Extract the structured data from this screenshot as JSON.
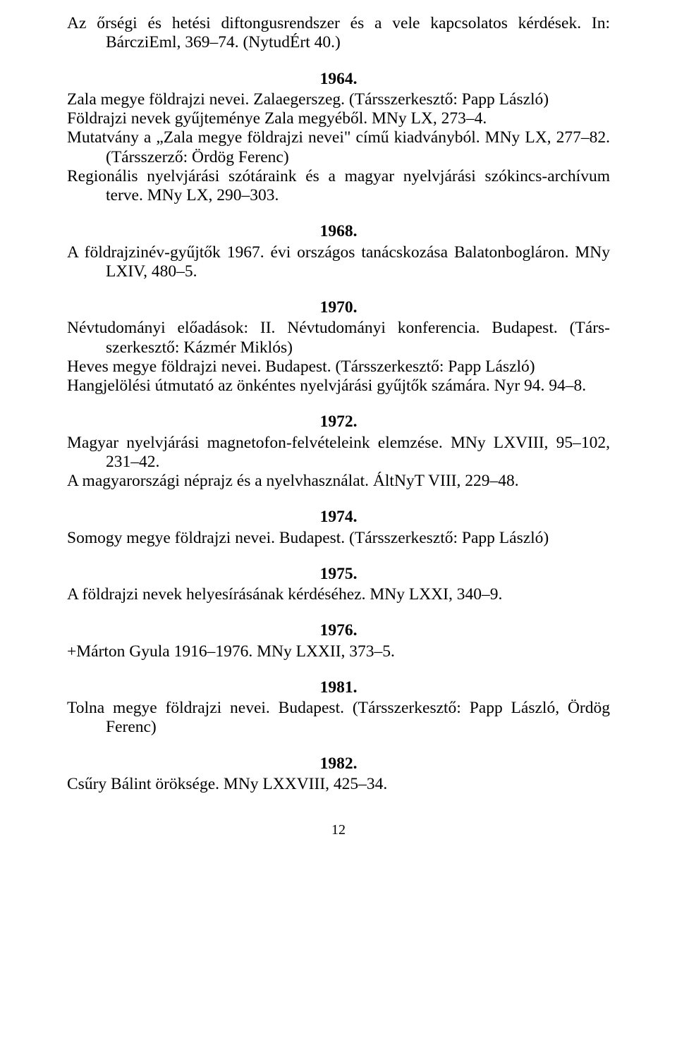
{
  "top": {
    "entry": "Az őrségi és hetési diftongusrendszer és a vele kapcsolatos kérdések. In: BárcziEml, 369–74. (NytudÉrt 40.)"
  },
  "y1964": {
    "year": "1964.",
    "e1": "Zala megye földrajzi nevei. Zalaegerszeg. (Társszerkesztő: Papp László)",
    "e2": "Földrajzi nevek gyűjteménye Zala megyéből. MNy LX, 273–4.",
    "e3": "Mutatvány a „Zala megye földrajzi nevei\" című kiadványból. MNy LX, 277–82. (Társszerző: Ördög Ferenc)",
    "e4": "Regionális nyelvjárási szótáraink és a magyar nyelvjárási szókincs-archívum terve. MNy LX, 290–303."
  },
  "y1968": {
    "year": "1968.",
    "e1": "A földrajzinév-gyűjtők 1967. évi országos tanácskozása Balatonbogláron. MNy LXIV, 480–5."
  },
  "y1970": {
    "year": "1970.",
    "e1": "Névtudományi előadások: II. Névtudományi konferencia. Budapest. (Társ­szerkesztő: Kázmér Miklós)",
    "e2": "Heves megye földrajzi nevei. Budapest. (Társszerkesztő: Papp László)",
    "e3": "Hangjelölési útmutató az önkéntes nyelvjárási gyűjtők számára. Nyr 94. 94–8."
  },
  "y1972": {
    "year": "1972.",
    "e1": "Magyar nyelvjárási magnetofon-felvételeink elemzése. MNy LXVIII, 95–102, 231–42.",
    "e2": "A magyarországi néprajz és a nyelvhasználat. ÁltNyT VIII, 229–48."
  },
  "y1974": {
    "year": "1974.",
    "e1": "Somogy megye földrajzi nevei. Budapest. (Társszerkesztő: Papp László)"
  },
  "y1975": {
    "year": "1975.",
    "e1": "A földrajzi nevek helyesírásának kérdéséhez. MNy LXXI, 340–9."
  },
  "y1976": {
    "year": "1976.",
    "e1": "+Márton Gyula 1916–1976. MNy LXXII, 373–5."
  },
  "y1981": {
    "year": "1981.",
    "e1": "Tolna megye földrajzi nevei. Budapest. (Társszerkesztő: Papp László, Ördög Ferenc)"
  },
  "y1982": {
    "year": "1982.",
    "e1": "Csűry Bálint öröksége. MNy LXXVIII, 425–34."
  },
  "pageNumber": "12"
}
